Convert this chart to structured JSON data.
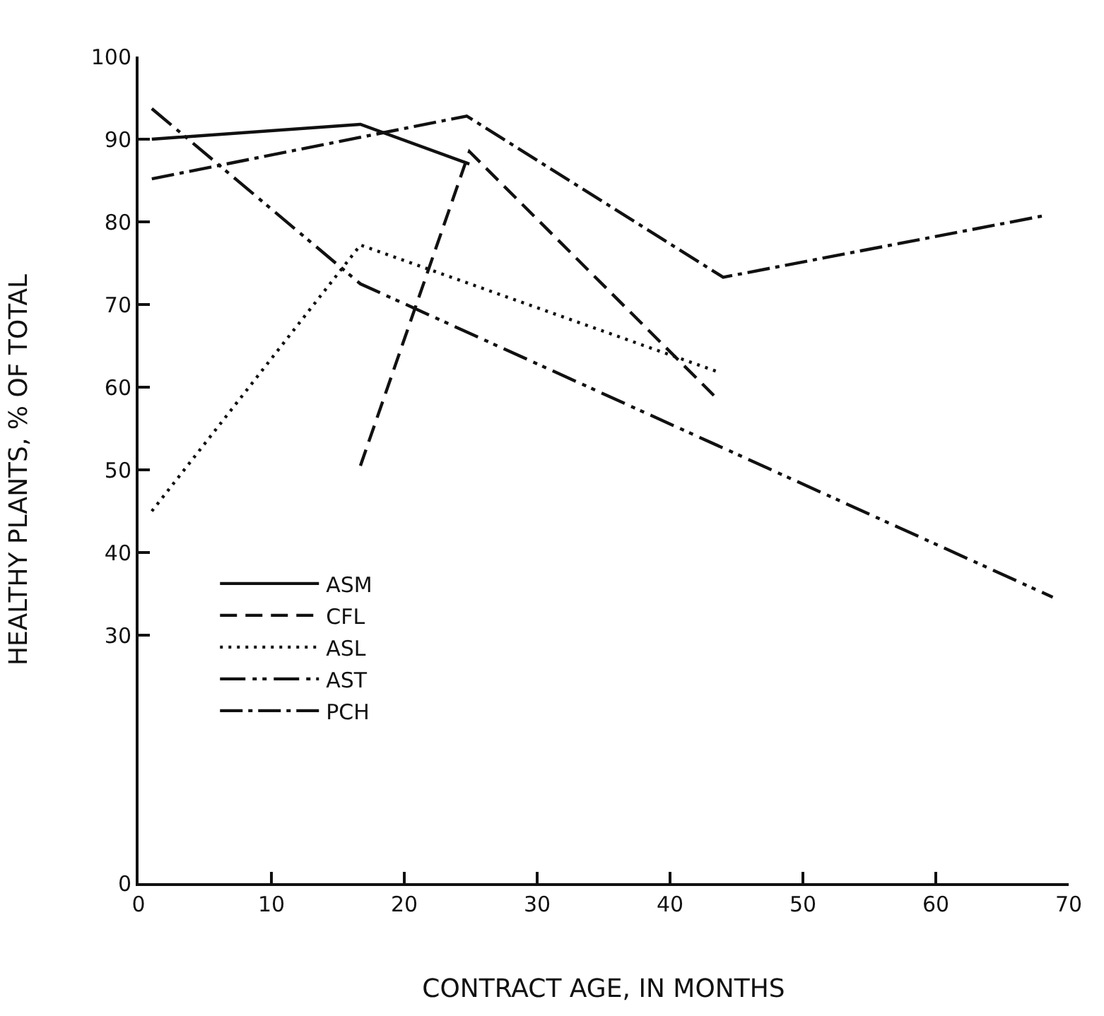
{
  "chart_data": {
    "type": "line",
    "xlabel": "CONTRACT AGE, IN MONTHS",
    "ylabel": "HEALTHY PLANTS, % OF TOTAL",
    "xlim": [
      0,
      70
    ],
    "xticks": [
      0,
      10,
      20,
      30,
      40,
      50,
      60,
      70
    ],
    "ylim": [
      0,
      100
    ],
    "yticks": [
      0,
      30,
      40,
      50,
      60,
      70,
      80,
      90,
      100
    ],
    "legend": "bottom left",
    "marker": "none",
    "series": [
      {
        "name": "ASM",
        "color": "#111111",
        "line_style": "solid",
        "x": [
          1,
          16.7,
          24.9
        ],
        "values": [
          90,
          91.8,
          87
        ]
      },
      {
        "name": "CFL",
        "color": "#111111",
        "line_style": "dashed",
        "x": [
          16.7,
          24.9,
          43.3
        ],
        "values": [
          50.5,
          88.5,
          59
        ]
      },
      {
        "name": "ASL",
        "color": "#111111",
        "line_style": "dotted",
        "x": [
          1,
          16.7,
          43.7
        ],
        "values": [
          45,
          77.2,
          61.8
        ]
      },
      {
        "name": "AST",
        "color": "#111111",
        "line_style": "dashdotdot",
        "x": [
          1,
          16.7,
          68.8
        ],
        "values": [
          93.7,
          72.5,
          34.6
        ]
      },
      {
        "name": "PCH",
        "color": "#111111",
        "line_style": "dashdot",
        "x": [
          1,
          24.7,
          44,
          68
        ],
        "values": [
          85.2,
          92.8,
          73.3,
          80.7
        ]
      }
    ]
  }
}
